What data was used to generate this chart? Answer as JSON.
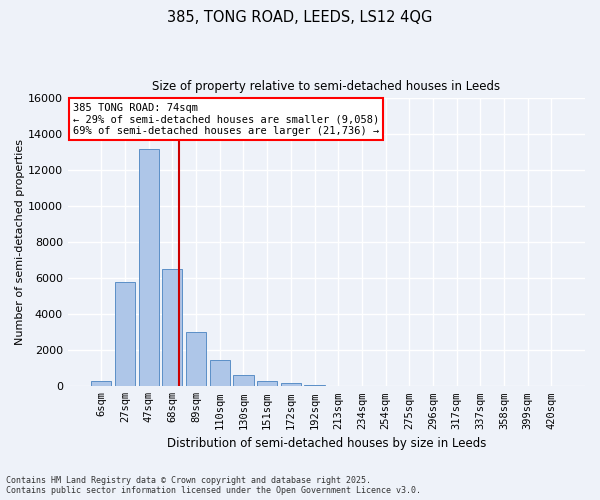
{
  "title1": "385, TONG ROAD, LEEDS, LS12 4QG",
  "title2": "Size of property relative to semi-detached houses in Leeds",
  "xlabel": "Distribution of semi-detached houses by size in Leeds",
  "ylabel": "Number of semi-detached properties",
  "categories": [
    "6sqm",
    "27sqm",
    "47sqm",
    "68sqm",
    "89sqm",
    "110sqm",
    "130sqm",
    "151sqm",
    "172sqm",
    "192sqm",
    "213sqm",
    "234sqm",
    "254sqm",
    "275sqm",
    "296sqm",
    "317sqm",
    "337sqm",
    "358sqm",
    "399sqm",
    "420sqm"
  ],
  "values": [
    300,
    5800,
    13200,
    6500,
    3000,
    1450,
    650,
    300,
    180,
    100,
    30,
    10,
    5,
    3,
    2,
    1,
    1,
    0,
    0,
    0
  ],
  "bar_color": "#aec6e8",
  "bar_edge_color": "#5b8fc7",
  "background_color": "#eef2f9",
  "grid_color": "#ffffff",
  "property_line_color": "#cc0000",
  "property_label": "385 TONG ROAD: 74sqm",
  "pct_smaller": "29% of semi-detached houses are smaller (9,058)",
  "pct_larger": "69% of semi-detached houses are larger (21,736)",
  "ylim": [
    0,
    16000
  ],
  "yticks": [
    0,
    2000,
    4000,
    6000,
    8000,
    10000,
    12000,
    14000,
    16000
  ],
  "footer1": "Contains HM Land Registry data © Crown copyright and database right 2025.",
  "footer2": "Contains public sector information licensed under the Open Government Licence v3.0."
}
